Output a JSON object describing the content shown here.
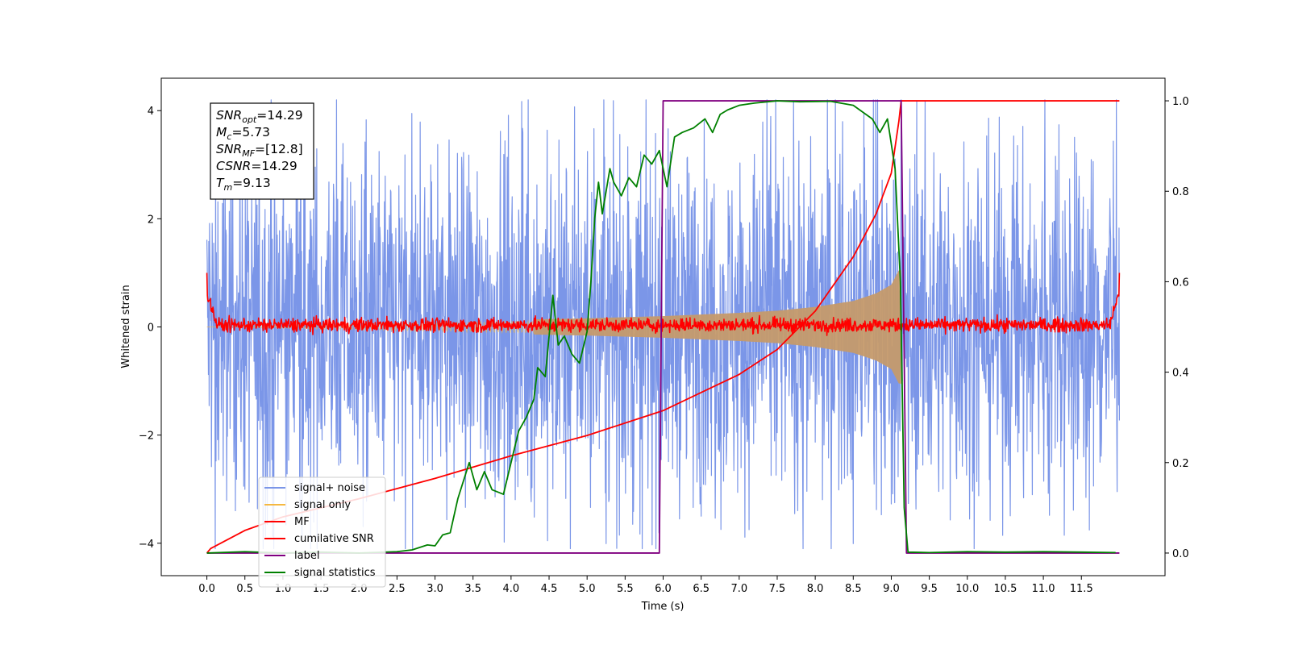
{
  "chart_data": {
    "type": "line",
    "xlabel": "Time (s)",
    "ylabel": "Whitened strain",
    "xlim": [
      -0.6,
      12.6
    ],
    "ylim": [
      -4.6,
      4.6
    ],
    "ylim_right": [
      -0.05,
      1.05
    ],
    "x_ticks": [
      0.0,
      0.5,
      1.0,
      1.5,
      2.0,
      2.5,
      3.0,
      3.5,
      4.0,
      4.5,
      5.0,
      5.5,
      6.0,
      6.5,
      7.0,
      7.5,
      8.0,
      8.5,
      9.0,
      9.5,
      10.0,
      10.5,
      11.0,
      11.5
    ],
    "x_tick_labels": [
      "0.0",
      "0.5",
      "1.0",
      "1.5",
      "2.0",
      "2.5",
      "3.0",
      "3.5",
      "4.0",
      "4.5",
      "5.0",
      "5.5",
      "6.0",
      "6.5",
      "7.0",
      "7.5",
      "8.0",
      "8.5",
      "9.0",
      "9.5",
      "10.0",
      "10.5",
      "11.0",
      "11.5"
    ],
    "y_ticks": [
      -4,
      -2,
      0,
      2,
      4
    ],
    "y_tick_labels": [
      "−4",
      "−2",
      "0",
      "2",
      "4"
    ],
    "y_right_ticks": [
      0.0,
      0.2,
      0.4,
      0.6,
      0.8,
      1.0
    ],
    "y_right_tick_labels": [
      "0.0",
      "0.2",
      "0.4",
      "0.6",
      "0.8",
      "1.0"
    ],
    "grid": false,
    "legend_position": "lower-left",
    "annotation_box": {
      "position": "top-left",
      "lines": [
        {
          "base": "SNR",
          "sub": "opt",
          "value": "=14.29"
        },
        {
          "base": "M",
          "sub": "c",
          "value": "=5.73"
        },
        {
          "base": "SNR",
          "sub": "MF",
          "value": "=[12.8]"
        },
        {
          "base": "CSNR",
          "sub": "",
          "value": "=14.29"
        },
        {
          "base": "T",
          "sub": "m",
          "value": "=9.13"
        }
      ]
    },
    "series": [
      {
        "name": "signal+ noise",
        "color": "#7b96e8",
        "axis": "left",
        "style": "dense noise trace",
        "x_range": [
          0,
          12.0
        ],
        "typical_envelope": [
          -2.6,
          2.6
        ],
        "extremes": [
          -4.1,
          4.2
        ]
      },
      {
        "name": "signal only",
        "color": "#f5b841",
        "axis": "left",
        "style": "chirp oscillation",
        "x_range": [
          0,
          9.13
        ],
        "envelope": {
          "x": [
            4.3,
            5.0,
            6.0,
            7.0,
            7.5,
            8.0,
            8.5,
            8.8,
            9.0,
            9.1
          ],
          "amp": [
            0.14,
            0.16,
            0.2,
            0.26,
            0.3,
            0.37,
            0.48,
            0.62,
            0.78,
            1.05
          ]
        }
      },
      {
        "name": "MF",
        "color": "#ff0000",
        "axis": "left",
        "style": "narrow noise trace",
        "x_range": [
          0,
          12.0
        ],
        "typical_envelope": [
          -0.08,
          0.15
        ],
        "edge_spikes": [
          [
            0.0,
            1.0
          ],
          [
            12.0,
            1.0
          ]
        ]
      },
      {
        "name": "cumilative SNR",
        "color": "#ff0000",
        "axis": "right",
        "x": [
          0.0,
          0.05,
          0.5,
          1.0,
          2.0,
          3.0,
          4.0,
          5.0,
          6.0,
          7.0,
          7.5,
          8.0,
          8.5,
          8.8,
          9.0,
          9.1,
          9.13,
          12.0
        ],
        "y": [
          0.0,
          0.01,
          0.05,
          0.08,
          0.12,
          0.165,
          0.215,
          0.26,
          0.315,
          0.395,
          0.45,
          0.535,
          0.655,
          0.75,
          0.84,
          0.955,
          1.0,
          1.0
        ]
      },
      {
        "name": "label",
        "color": "#800080",
        "axis": "right",
        "x": [
          0.0,
          5.95,
          6.0,
          9.13,
          9.2,
          12.0
        ],
        "y": [
          0.0,
          0.0,
          1.0,
          1.0,
          0.0,
          0.0
        ]
      },
      {
        "name": "signal statistics",
        "color": "#008000",
        "axis": "right",
        "x": [
          0.0,
          0.5,
          1.0,
          1.5,
          2.0,
          2.5,
          2.7,
          2.9,
          3.0,
          3.1,
          3.2,
          3.3,
          3.45,
          3.55,
          3.65,
          3.75,
          3.9,
          4.0,
          4.1,
          4.2,
          4.3,
          4.35,
          4.45,
          4.55,
          4.62,
          4.7,
          4.8,
          4.9,
          5.0,
          5.05,
          5.1,
          5.15,
          5.2,
          5.3,
          5.35,
          5.45,
          5.55,
          5.65,
          5.75,
          5.85,
          5.95,
          6.05,
          6.15,
          6.25,
          6.4,
          6.55,
          6.65,
          6.75,
          6.85,
          7.0,
          7.2,
          7.5,
          7.8,
          8.2,
          8.5,
          8.75,
          8.85,
          8.95,
          9.05,
          9.12,
          9.17,
          9.22,
          9.5,
          10.0,
          10.5,
          11.0,
          11.5,
          11.95
        ],
        "y": [
          0.0,
          0.003,
          0.0,
          0.002,
          0.0,
          0.003,
          0.007,
          0.018,
          0.016,
          0.04,
          0.045,
          0.12,
          0.2,
          0.14,
          0.18,
          0.14,
          0.13,
          0.2,
          0.27,
          0.3,
          0.34,
          0.41,
          0.39,
          0.57,
          0.46,
          0.48,
          0.44,
          0.42,
          0.49,
          0.6,
          0.74,
          0.82,
          0.75,
          0.85,
          0.82,
          0.79,
          0.83,
          0.81,
          0.88,
          0.86,
          0.89,
          0.81,
          0.92,
          0.93,
          0.94,
          0.96,
          0.93,
          0.97,
          0.98,
          0.99,
          0.995,
          1.0,
          0.998,
          0.999,
          0.99,
          0.96,
          0.93,
          0.96,
          0.85,
          0.6,
          0.1,
          0.002,
          0.001,
          0.003,
          0.002,
          0.003,
          0.002,
          0.001
        ]
      }
    ]
  }
}
